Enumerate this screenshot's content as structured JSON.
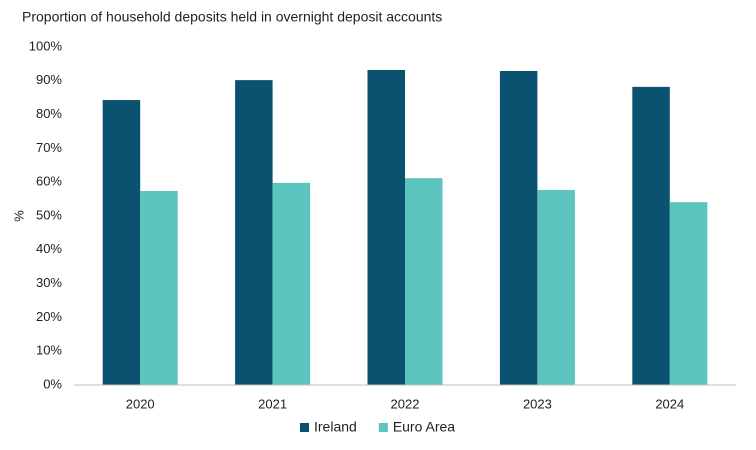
{
  "chart_data": {
    "type": "bar",
    "title": "Proportion of household deposits held in overnight deposit accounts",
    "y_label": "%",
    "categories": [
      "2020",
      "2021",
      "2022",
      "2023",
      "2024"
    ],
    "series": [
      {
        "name": "Ireland",
        "color": "#0b5170",
        "values": [
          84.3,
          90.2,
          93.2,
          92.9,
          88.2
        ]
      },
      {
        "name": "Euro Area",
        "color": "#5cc5c0",
        "values": [
          57.4,
          59.8,
          61.2,
          57.7,
          54.1
        ]
      }
    ],
    "ylim": [
      0,
      100
    ],
    "yticks": [
      {
        "value": 0,
        "label": "0%"
      },
      {
        "value": 10,
        "label": "10%"
      },
      {
        "value": 20,
        "label": "20%"
      },
      {
        "value": 30,
        "label": "30%"
      },
      {
        "value": 40,
        "label": "40%"
      },
      {
        "value": 50,
        "label": "50%"
      },
      {
        "value": 60,
        "label": "60%"
      },
      {
        "value": 70,
        "label": "70%"
      },
      {
        "value": 80,
        "label": "80%"
      },
      {
        "value": 90,
        "label": "90%"
      },
      {
        "value": 100,
        "label": "100%"
      }
    ],
    "grid": false,
    "legend": "bottom"
  }
}
